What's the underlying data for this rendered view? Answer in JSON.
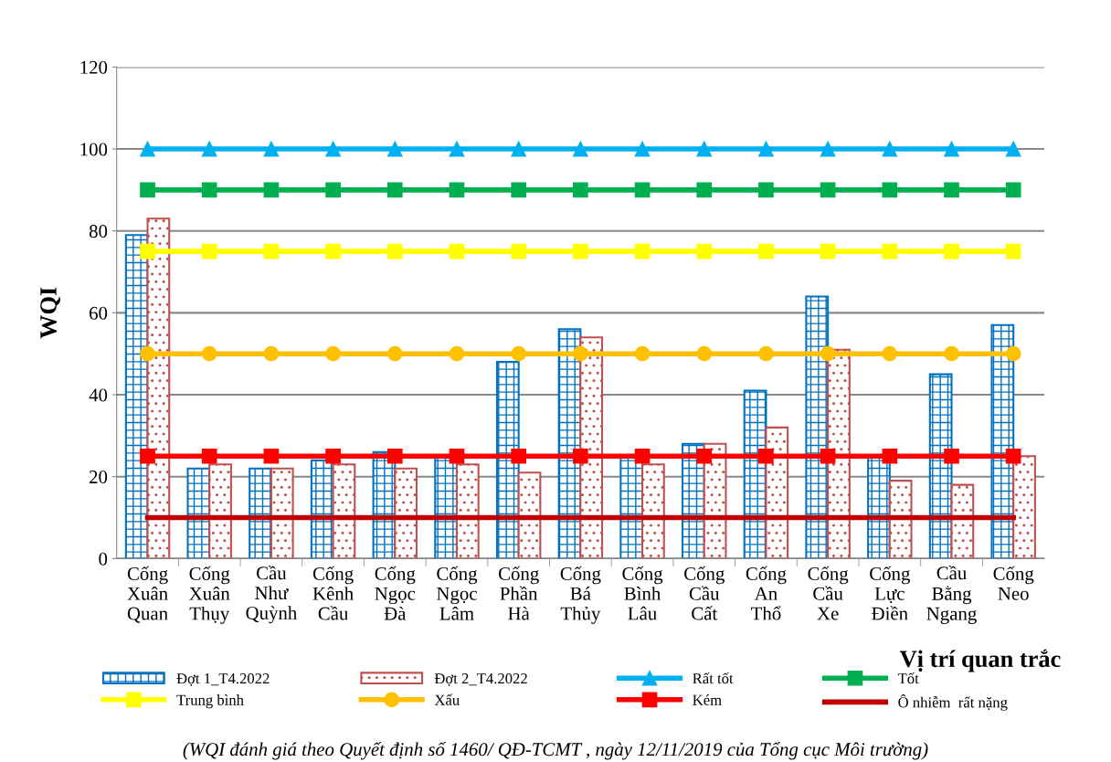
{
  "chart_data": {
    "type": "bar",
    "xlabel": "Vị trí quan trắc",
    "ylabel": "WQI",
    "categories": [
      "Cống\nXuân\nQuan",
      "Cống\nXuân\nThụy",
      "Cầu\nNhư\nQuỳnh",
      "Cống\nKênh\nCầu",
      "Cống\nNgọc\nĐà",
      "Cống\nNgọc\nLâm",
      "Cống\nPhần\nHà",
      "Cống\nBá\nThủy",
      "Cống\nBình\nLâu",
      "Cống\nCầu\nCất",
      "Cống\nAn\nThổ",
      "Cống\nCầu\nXe",
      "Cống\nLực\nĐiền",
      "Cầu\nBằng\nNgang",
      "Cống\nNeo"
    ],
    "series": [
      {
        "name": "Đợt 1_T4.2022",
        "color": "#0070c0",
        "values": [
          79,
          22,
          22,
          24,
          26,
          25,
          48,
          56,
          25,
          28,
          41,
          64,
          25,
          45,
          57
        ]
      },
      {
        "name": "Đợt 2_T4.2022",
        "color": "#c0504d",
        "values": [
          83,
          23,
          22,
          23,
          22,
          23,
          21,
          54,
          23,
          28,
          32,
          51,
          19,
          18,
          25
        ]
      },
      {
        "name": "Rất tốt",
        "type": "line",
        "color": "#00b0f0",
        "marker": "triangle",
        "values": [
          100,
          100,
          100,
          100,
          100,
          100,
          100,
          100,
          100,
          100,
          100,
          100,
          100,
          100,
          100
        ]
      },
      {
        "name": "Tốt",
        "type": "line",
        "color": "#00b050",
        "marker": "square",
        "values": [
          90,
          90,
          90,
          90,
          90,
          90,
          90,
          90,
          90,
          90,
          90,
          90,
          90,
          90,
          90
        ]
      },
      {
        "name": "Trung bình",
        "type": "line",
        "color": "#ffff00",
        "marker": "square",
        "values": [
          75,
          75,
          75,
          75,
          75,
          75,
          75,
          75,
          75,
          75,
          75,
          75,
          75,
          75,
          75
        ]
      },
      {
        "name": "Xấu",
        "type": "line",
        "color": "#ffc000",
        "marker": "circle",
        "values": [
          50,
          50,
          50,
          50,
          50,
          50,
          50,
          50,
          50,
          50,
          50,
          50,
          50,
          50,
          50
        ]
      },
      {
        "name": "Kém",
        "type": "line",
        "color": "#ff0000",
        "marker": "square",
        "values": [
          25,
          25,
          25,
          25,
          25,
          25,
          25,
          25,
          25,
          25,
          25,
          25,
          25,
          25,
          25
        ]
      },
      {
        "name": "Ô nhiễm  rất nặng",
        "type": "line",
        "color": "#c00000",
        "marker": "none",
        "values": [
          10,
          10,
          10,
          10,
          10,
          10,
          10,
          10,
          10,
          10,
          10,
          10,
          10,
          10,
          10
        ]
      }
    ],
    "ylim": [
      0,
      120
    ],
    "yticks": [
      0,
      20,
      40,
      60,
      80,
      100,
      120
    ],
    "grid": "y",
    "legend": "bottom",
    "annotations": [
      "(WQI đánh giá theo Quyết định số 1460/ QĐ-TCMT , ngày 12/11/2019 của Tổng cục Môi trường)"
    ]
  }
}
